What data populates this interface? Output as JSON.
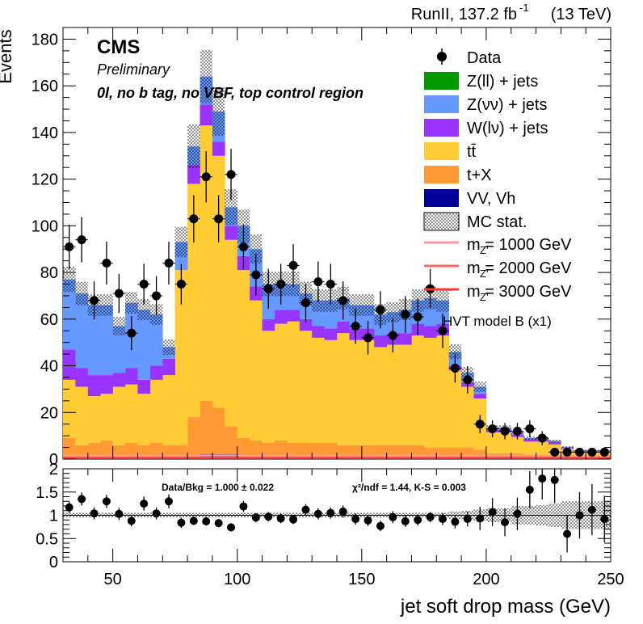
{
  "header": {
    "lumi": "RunII, 137.2 fb",
    "lumi_sup": "-1",
    "energy": "(13 TeV)",
    "experiment": "CMS",
    "status": "Preliminary",
    "region": "0l, no b tag, no VBF, top control region"
  },
  "legend": {
    "data": "Data",
    "zll": "Z(ll) + jets",
    "znn": "Z(νν) + jets",
    "wln": "W(lν) + jets",
    "tt": "tt̄",
    "tx": "t+X",
    "vv": "VV, Vh",
    "mcstat": "MC stat.",
    "sig1": "m  = 1000 GeV",
    "sig2": "m  = 2000 GeV",
    "sig3": "m  = 3000 GeV",
    "sig_sub": "Z'",
    "model": "HVT model B (x1)"
  },
  "ratio_text": {
    "databkg": "Data/Bkg = 1.000 ± 0.022",
    "chi2": "χ²/ndf = 1.44,   K-S = 0.003"
  },
  "colors": {
    "zll": "#009900",
    "znn": "#6699ff",
    "wln": "#9933ff",
    "tt": "#ffcc33",
    "tx": "#ff9933",
    "vv": "#000099",
    "sig1": "#ff9999",
    "sig2": "#ff6666",
    "sig3": "#ff3333"
  },
  "chart_data": [
    {
      "type": "bar",
      "stacked": true,
      "title": "",
      "ylabel": "Events",
      "xlabel": "jet soft drop mass (GeV)",
      "xlim": [
        30,
        250
      ],
      "ylim": [
        0,
        185
      ],
      "yticks": [
        0,
        20,
        40,
        60,
        80,
        100,
        120,
        140,
        160,
        180
      ],
      "xticks": [
        50,
        100,
        150,
        200,
        250
      ],
      "bin_width": 5,
      "x": [
        32.5,
        37.5,
        42.5,
        47.5,
        52.5,
        57.5,
        62.5,
        67.5,
        72.5,
        77.5,
        82.5,
        87.5,
        92.5,
        97.5,
        102.5,
        107.5,
        112.5,
        117.5,
        122.5,
        127.5,
        132.5,
        137.5,
        142.5,
        147.5,
        152.5,
        157.5,
        162.5,
        167.5,
        172.5,
        177.5,
        182.5,
        187.5,
        192.5,
        197.5,
        202.5,
        207.5,
        212.5,
        217.5,
        222.5,
        227.5,
        232.5,
        237.5,
        242.5,
        247.5
      ],
      "series": [
        {
          "name": "VV, Vh",
          "values": [
            1,
            1,
            1,
            1,
            1,
            1,
            1,
            1,
            1,
            1,
            1,
            2,
            2,
            2,
            1,
            1,
            1,
            1,
            1,
            1,
            1,
            1,
            1,
            1,
            1,
            1,
            1,
            1,
            1,
            1,
            1,
            1,
            1,
            1,
            0.5,
            0.5,
            0.5,
            0.5,
            0.5,
            0.3,
            0.3,
            0.3,
            0.3,
            0.3
          ]
        },
        {
          "name": "t+X",
          "values": [
            8,
            5,
            6,
            7,
            5,
            6,
            5,
            6,
            5,
            5,
            17,
            23,
            20,
            12,
            8,
            7,
            6,
            7,
            6,
            6,
            6,
            6,
            5,
            5,
            5,
            5,
            5,
            5,
            5,
            4,
            4,
            4,
            4,
            3,
            2,
            2,
            2,
            1,
            1,
            1,
            1,
            0.5,
            0.5,
            0.5
          ]
        },
        {
          "name": "tt̄",
          "values": [
            25,
            25,
            20,
            20,
            25,
            25,
            22,
            27,
            30,
            75,
            100,
            118,
            108,
            80,
            72,
            60,
            48,
            50,
            52,
            48,
            45,
            44,
            48,
            45,
            45,
            42,
            43,
            43,
            47,
            47,
            48,
            33,
            26,
            22,
            9,
            9,
            7,
            6,
            6,
            5,
            3,
            2,
            2,
            2
          ]
        },
        {
          "name": "W(lν) + jets",
          "values": [
            13,
            8,
            9,
            8,
            6,
            7,
            6,
            6,
            7,
            0,
            8,
            9,
            6,
            6,
            6,
            6,
            5,
            6,
            5,
            5,
            5,
            5,
            5,
            5,
            5,
            5,
            5,
            5,
            5,
            5,
            5,
            2,
            2,
            2,
            1,
            1,
            1,
            1,
            1,
            1,
            0.5,
            0.5,
            0.5,
            0.5
          ]
        },
        {
          "name": "Z(νν) + jets",
          "values": [
            30,
            32,
            30,
            30,
            20,
            28,
            30,
            22,
            5,
            12,
            8,
            12,
            13,
            8,
            13,
            16,
            15,
            11,
            11,
            11,
            11,
            12,
            10,
            10,
            10,
            9,
            9,
            10,
            10,
            12,
            10,
            6,
            4,
            3,
            1,
            1,
            1,
            0.5,
            0.5,
            0.5,
            0.5,
            0.5,
            0.5,
            0.5
          ]
        },
        {
          "name": "Z(ll) + jets",
          "values": [
            0,
            0,
            0,
            0,
            0,
            0,
            0,
            0,
            0,
            0,
            0,
            0,
            0,
            0,
            0,
            0,
            0,
            0,
            0,
            0,
            0,
            0,
            0,
            0,
            0,
            0,
            0,
            0,
            0,
            0,
            0,
            0,
            0,
            0,
            0,
            0,
            0,
            0,
            0,
            0,
            0,
            0,
            0,
            0
          ]
        }
      ],
      "data": {
        "name": "Data",
        "values": [
          91,
          94,
          68,
          84,
          71,
          54,
          75,
          70,
          84,
          75,
          103,
          121,
          103,
          122,
          91,
          79,
          73,
          75,
          83,
          67,
          76,
          75,
          68,
          57,
          52,
          64,
          53,
          62,
          61,
          73,
          55,
          39,
          34,
          15,
          13,
          12,
          12,
          13,
          9,
          3,
          3,
          3,
          3,
          3
        ],
        "errors": [
          9.5,
          9.7,
          8.2,
          9.2,
          8.4,
          7.3,
          8.7,
          8.4,
          9.2,
          8.7,
          10.1,
          11,
          10.1,
          11,
          9.5,
          8.9,
          8.5,
          8.7,
          9.1,
          8.2,
          8.7,
          8.7,
          8.2,
          7.5,
          7.2,
          8,
          7.3,
          7.9,
          7.8,
          8.5,
          7.4,
          6.2,
          5.8,
          3.9,
          3.6,
          3.5,
          3.5,
          3.6,
          3,
          1.7,
          1.7,
          1.7,
          1.7,
          1.7
        ]
      },
      "mc_stat_rel": 0.07,
      "signals": [
        {
          "name": "m Z' = 1000 GeV",
          "values": [
            1.5,
            1.5,
            1.5,
            1.5,
            1.5,
            1.5,
            1.5,
            1.5,
            1.5,
            1.5,
            1.5,
            1.5,
            1.5,
            1.5,
            1.5,
            1.5,
            1.5,
            1.5,
            1.5,
            1.5,
            1.5,
            1.5,
            1.5,
            1.5,
            1.5,
            1.5,
            1.5,
            1.5,
            1.5,
            1.5,
            1.5,
            1.5,
            1.5,
            1.5,
            1.5,
            1.5,
            1.5,
            1.5,
            1.5,
            1.5,
            1.5,
            1.5,
            1.5,
            1.5
          ]
        },
        {
          "name": "m Z' = 2000 GeV",
          "values": [
            0.8,
            0.8,
            0.8,
            0.8,
            0.8,
            0.8,
            0.8,
            0.8,
            0.8,
            0.8,
            0.8,
            0.8,
            0.8,
            0.8,
            0.8,
            0.8,
            0.8,
            0.8,
            0.8,
            0.8,
            0.8,
            0.8,
            0.8,
            0.8,
            0.8,
            0.8,
            0.8,
            0.8,
            0.8,
            0.8,
            0.8,
            0.8,
            0.8,
            0.8,
            0.8,
            0.8,
            0.8,
            0.8,
            0.8,
            0.8,
            0.8,
            0.8,
            0.8,
            0.8
          ]
        },
        {
          "name": "m Z' = 3000 GeV",
          "values": [
            0.4,
            0.4,
            0.4,
            0.4,
            0.4,
            0.4,
            0.4,
            0.4,
            0.4,
            0.4,
            0.4,
            0.4,
            0.4,
            0.4,
            0.4,
            0.4,
            0.4,
            0.4,
            0.4,
            0.4,
            0.4,
            0.4,
            0.4,
            0.4,
            0.4,
            0.4,
            0.4,
            0.4,
            0.4,
            0.4,
            0.4,
            0.4,
            0.4,
            0.4,
            0.4,
            0.4,
            0.4,
            0.4,
            0.4,
            0.4,
            0.4,
            0.4,
            0.4,
            0.4
          ]
        }
      ]
    },
    {
      "type": "scatter",
      "title": "",
      "xlabel": "jet soft drop mass (GeV)",
      "ylabel": "",
      "xlim": [
        30,
        250
      ],
      "ylim": [
        0,
        2
      ],
      "yticks": [
        0,
        0.5,
        1,
        1.5,
        2
      ],
      "yticklabels": [
        "0",
        "0.5",
        "1",
        "1.5",
        "2"
      ],
      "xticks": [
        50,
        100,
        150,
        200,
        250
      ],
      "x": [
        32.5,
        37.5,
        42.5,
        47.5,
        52.5,
        57.5,
        62.5,
        67.5,
        72.5,
        77.5,
        82.5,
        87.5,
        92.5,
        97.5,
        102.5,
        107.5,
        112.5,
        117.5,
        122.5,
        127.5,
        132.5,
        137.5,
        142.5,
        147.5,
        152.5,
        157.5,
        162.5,
        167.5,
        172.5,
        177.5,
        182.5,
        187.5,
        192.5,
        197.5,
        202.5,
        207.5,
        212.5,
        217.5,
        222.5,
        227.5,
        232.5,
        237.5,
        242.5,
        247.5
      ],
      "ratio": [
        1.17,
        1.35,
        1.04,
        1.3,
        1.03,
        0.88,
        1.25,
        1.04,
        1.3,
        0.84,
        0.88,
        0.87,
        0.83,
        0.74,
        1.19,
        0.95,
        0.97,
        0.93,
        0.91,
        1.12,
        1.03,
        1.05,
        1.08,
        0.92,
        0.89,
        0.77,
        0.96,
        0.87,
        0.9,
        0.96,
        0.92,
        0.86,
        0.92,
        0.93,
        1.07,
        0.85,
        1.03,
        1.55,
        1.79,
        1.76,
        0.6,
        1.0,
        1.12,
        0.92
      ],
      "errors": [
        0.12,
        0.14,
        0.13,
        0.14,
        0.13,
        0.12,
        0.15,
        0.13,
        0.15,
        0.11,
        0.09,
        0.09,
        0.09,
        0.09,
        0.12,
        0.1,
        0.1,
        0.1,
        0.1,
        0.12,
        0.12,
        0.12,
        0.13,
        0.12,
        0.12,
        0.11,
        0.13,
        0.12,
        0.12,
        0.11,
        0.13,
        0.14,
        0.16,
        0.25,
        0.3,
        0.3,
        0.35,
        0.4,
        0.45,
        0.5,
        0.4,
        0.5,
        0.55,
        0.5
      ],
      "mc_stat_rel": [
        0.05,
        0.05,
        0.05,
        0.05,
        0.05,
        0.05,
        0.05,
        0.05,
        0.05,
        0.05,
        0.05,
        0.05,
        0.05,
        0.05,
        0.05,
        0.05,
        0.05,
        0.05,
        0.05,
        0.05,
        0.05,
        0.05,
        0.05,
        0.05,
        0.05,
        0.05,
        0.05,
        0.05,
        0.05,
        0.05,
        0.05,
        0.08,
        0.1,
        0.12,
        0.15,
        0.15,
        0.2,
        0.2,
        0.22,
        0.25,
        0.3,
        0.3,
        0.3,
        0.3
      ]
    }
  ]
}
